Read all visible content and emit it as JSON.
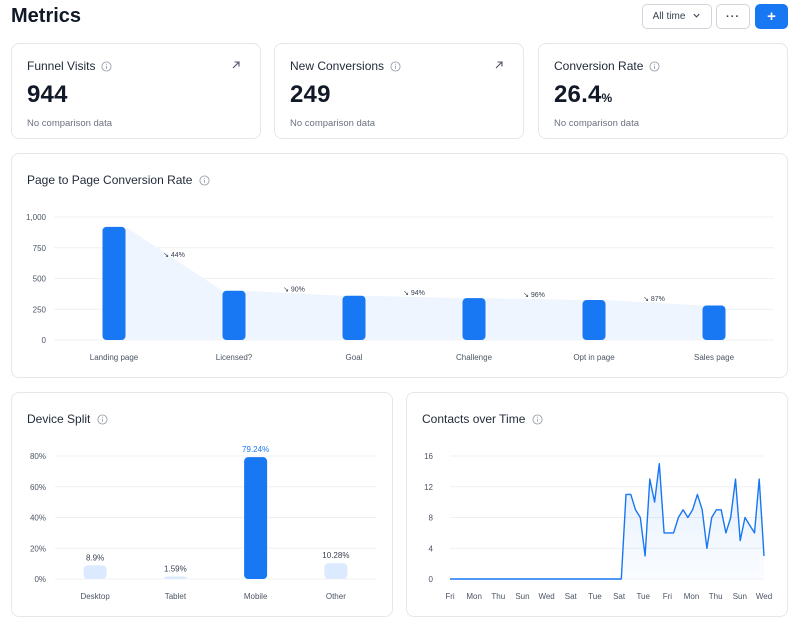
{
  "header": {
    "title": "Metrics",
    "range_label": "All time",
    "more_label": "···",
    "add_label": "+"
  },
  "kpis": [
    {
      "title": "Funnel Visits",
      "value": "944",
      "unit": "",
      "sub": "No comparison data",
      "has_arrow": true
    },
    {
      "title": "New Conversions",
      "value": "249",
      "unit": "",
      "sub": "No comparison data",
      "has_arrow": true
    },
    {
      "title": "Conversion Rate",
      "value": "26.4",
      "unit": "%",
      "sub": "No comparison data",
      "has_arrow": false
    }
  ],
  "cards": {
    "funnel_title": "Page to Page Conversion Rate",
    "device_title": "Device Split",
    "contacts_title": "Contacts over Time"
  },
  "colors": {
    "primary": "#1877f2",
    "light_bar": "#dbeafe",
    "grid": "#eef0f3",
    "axis_text": "#4b5563"
  },
  "chart_data": [
    {
      "type": "bar",
      "title": "Page to Page Conversion Rate",
      "categories": [
        "Landing page",
        "Licensed?",
        "Goal",
        "Challenge",
        "Opt in page",
        "Sales page"
      ],
      "values": [
        920,
        400,
        360,
        340,
        325,
        280
      ],
      "step_labels": [
        "↘ 44%",
        "↘ 90%",
        "↘ 94%",
        "↘ 96%",
        "↘ 87%"
      ],
      "yticks": [
        "1,000",
        "750",
        "500",
        "250",
        "0"
      ],
      "ylim": [
        0,
        1000
      ],
      "grid": true
    },
    {
      "type": "bar",
      "title": "Device Split",
      "categories": [
        "Desktop",
        "Tablet",
        "Mobile",
        "Other"
      ],
      "values": [
        8.9,
        1.59,
        79.24,
        10.28
      ],
      "value_labels": [
        "8.9%",
        "1.59%",
        "79.24%",
        "10.28%"
      ],
      "highlight_index": 2,
      "yticks": [
        "80%",
        "60%",
        "40%",
        "20%",
        "0%"
      ],
      "ylim": [
        0,
        80
      ],
      "grid": true
    },
    {
      "type": "area",
      "title": "Contacts over Time",
      "values": [
        0,
        0,
        0,
        0,
        0,
        0,
        0,
        0,
        0,
        0,
        0,
        0,
        0,
        0,
        0,
        0,
        0,
        0,
        0,
        0,
        0,
        0,
        0,
        0,
        0,
        0,
        0,
        0,
        0,
        0,
        0,
        0,
        0,
        0,
        0,
        0,
        0,
        11,
        11,
        9,
        8,
        3,
        13,
        10,
        15,
        6,
        6,
        6,
        8,
        9,
        8,
        9,
        11,
        9,
        4,
        8,
        9,
        9,
        6,
        8,
        13,
        5,
        8,
        7,
        6,
        13,
        3
      ],
      "xticks": [
        "Fri",
        "Mon",
        "Thu",
        "Sun",
        "Wed",
        "Sat",
        "Tue",
        "Sat",
        "Tue",
        "Fri",
        "Mon",
        "Thu",
        "Sun",
        "Wed"
      ],
      "yticks": [
        "16",
        "12",
        "8",
        "4",
        "0"
      ],
      "ylim": [
        0,
        16
      ],
      "grid": true
    }
  ]
}
